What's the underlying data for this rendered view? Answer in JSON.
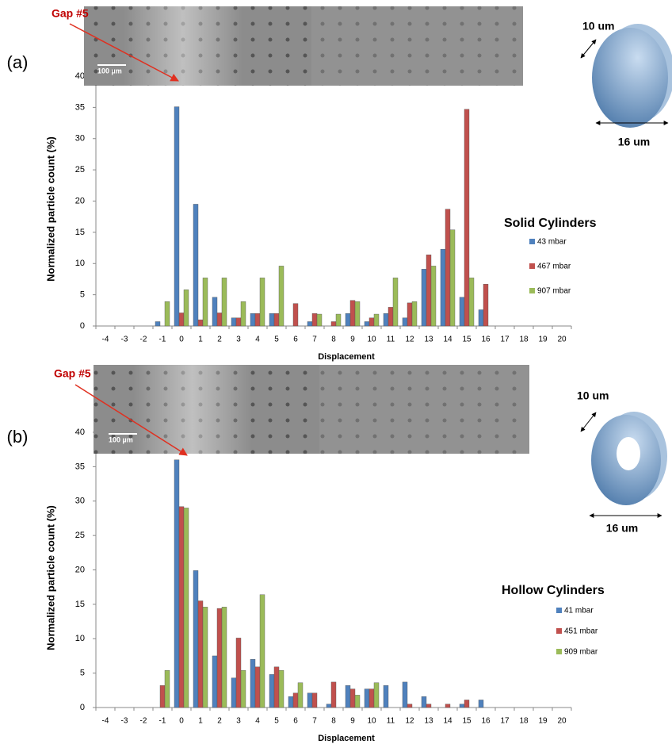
{
  "chart_data": [
    {
      "type": "bar",
      "x_label": "Displacement",
      "y_label": "Normalized particle count (%)",
      "legend_title": "Solid Cylinders",
      "categories": [
        "-4",
        "-3",
        "-2",
        "-1",
        "0",
        "1",
        "2",
        "3",
        "4",
        "5",
        "6",
        "7",
        "8",
        "9",
        "10",
        "11",
        "12",
        "13",
        "14",
        "15",
        "16",
        "17",
        "18",
        "19",
        "20"
      ],
      "series": [
        {
          "name": "43 mbar",
          "color": "#4f81bd",
          "values": [
            0,
            0,
            0,
            0.7,
            35.1,
            19.5,
            4.6,
            1.3,
            2.0,
            2.0,
            0,
            0.7,
            0,
            2.0,
            0.7,
            2.0,
            1.3,
            9.1,
            12.3,
            4.6,
            2.6,
            0,
            0,
            0,
            0
          ]
        },
        {
          "name": "467 mbar",
          "color": "#c0504d",
          "values": [
            0,
            0,
            0,
            0,
            2.1,
            1.0,
            2.1,
            1.3,
            2.0,
            2.0,
            3.6,
            2.0,
            0.7,
            4.1,
            1.3,
            3.0,
            3.7,
            11.4,
            18.7,
            34.7,
            6.7,
            0,
            0,
            0,
            0
          ]
        },
        {
          "name": "907 mbar",
          "color": "#9bbb59",
          "values": [
            0,
            0,
            0,
            3.9,
            5.8,
            7.7,
            7.7,
            3.9,
            7.7,
            9.6,
            0,
            1.9,
            1.9,
            3.9,
            1.9,
            7.7,
            3.9,
            9.6,
            15.4,
            7.7,
            0,
            0,
            0,
            0,
            0
          ]
        }
      ],
      "ylim": [
        0,
        40
      ],
      "yticks": [
        0,
        5,
        10,
        15,
        20,
        25,
        30,
        35,
        40
      ],
      "annotations": {
        "panel_label": "(a)",
        "gap_label": "Gap #5",
        "scale_bar": "100 µm",
        "depth_label": "10 um",
        "diameter_label": "16 um"
      }
    },
    {
      "type": "bar",
      "x_label": "Displacement",
      "y_label": "Normalized particle count (%)",
      "legend_title": "Hollow Cylinders",
      "categories": [
        "-4",
        "-3",
        "-2",
        "-1",
        "0",
        "1",
        "2",
        "3",
        "4",
        "5",
        "6",
        "7",
        "8",
        "9",
        "10",
        "11",
        "12",
        "13",
        "14",
        "15",
        "16",
        "17",
        "18",
        "19",
        "20"
      ],
      "series": [
        {
          "name": "41 mbar",
          "color": "#4f81bd",
          "values": [
            0,
            0,
            0,
            0,
            36.0,
            19.9,
            7.5,
            4.3,
            7.0,
            4.8,
            1.6,
            2.1,
            0.5,
            3.2,
            2.7,
            3.2,
            3.7,
            1.6,
            0,
            0.5,
            1.1,
            0,
            0,
            0,
            0
          ]
        },
        {
          "name": "451 mbar",
          "color": "#c0504d",
          "values": [
            0,
            0,
            0,
            3.2,
            29.2,
            15.5,
            14.4,
            10.1,
            5.9,
            5.9,
            2.1,
            2.1,
            3.7,
            2.7,
            2.7,
            0,
            0.5,
            0.5,
            0.5,
            1.1,
            0,
            0,
            0,
            0,
            0
          ]
        },
        {
          "name": "909 mbar",
          "color": "#9bbb59",
          "values": [
            0,
            0,
            0,
            5.4,
            29.0,
            14.6,
            14.6,
            5.4,
            16.4,
            5.4,
            3.6,
            0,
            0,
            1.8,
            3.6,
            0,
            0,
            0,
            0,
            0,
            0,
            0,
            0,
            0,
            0
          ]
        }
      ],
      "ylim": [
        0,
        40
      ],
      "yticks": [
        0,
        5,
        10,
        15,
        20,
        25,
        30,
        35,
        40
      ],
      "annotations": {
        "panel_label": "(b)",
        "gap_label": "Gap #5",
        "scale_bar": "100 µm",
        "depth_label": "10 um",
        "diameter_label": "16 um"
      }
    }
  ]
}
